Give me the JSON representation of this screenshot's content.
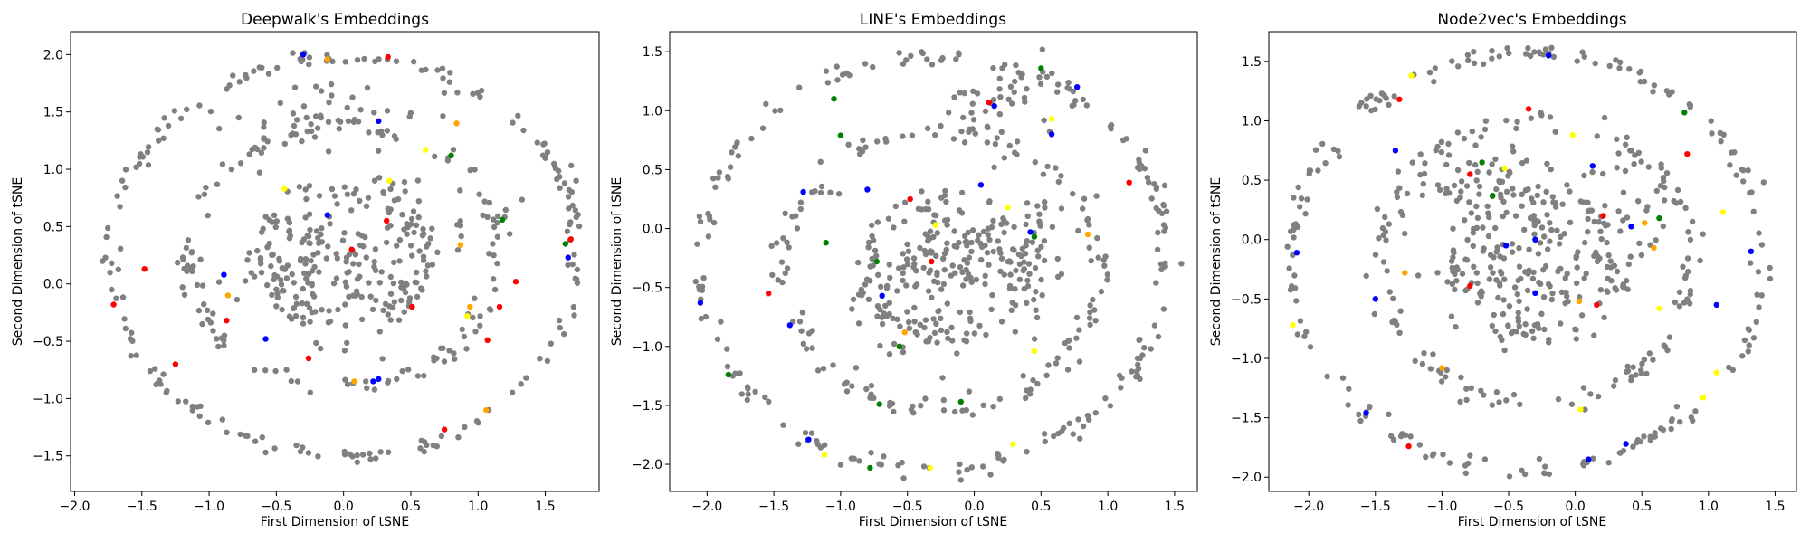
{
  "figure": {
    "background": "#ffffff"
  },
  "chart_data": [
    {
      "type": "scatter",
      "title": "Deepwalk's Embeddings",
      "xlabel": "First Dimension of tSNE",
      "ylabel": "Second Dimension of tSNE",
      "xlim": [
        -2.03,
        1.9
      ],
      "ylim": [
        -1.81,
        2.2
      ],
      "xticks": [
        -2.0,
        -1.5,
        -1.0,
        -0.5,
        0.0,
        0.5,
        1.0,
        1.5
      ],
      "xtick_labels": [
        "−2.0",
        "−1.5",
        "−1.0",
        "−0.5",
        "0.0",
        "0.5",
        "1.0",
        "1.5"
      ],
      "yticks": [
        -1.5,
        -1.0,
        -0.5,
        0.0,
        0.5,
        1.0,
        1.5,
        2.0
      ],
      "ytick_labels": [
        "−1.5",
        "−1.0",
        "−0.5",
        "0.0",
        "0.5",
        "1.0",
        "1.5",
        "2.0"
      ],
      "grid": false,
      "base_color": "#808080",
      "seed": 11,
      "rings": [
        {
          "cx": 0.0,
          "cy": 0.25,
          "r": 1.74,
          "n": 190,
          "jitter": 0.035
        },
        {
          "cx": 0.0,
          "cy": 0.25,
          "r": 1.15,
          "n": 130,
          "jitter": 0.05
        },
        {
          "cx": 0.0,
          "cy": 0.25,
          "r": 0.6,
          "n": 80,
          "jitter": 0.06
        }
      ],
      "clusters": [
        {
          "cx": 0.0,
          "cy": 0.1,
          "sx": 0.35,
          "sy": 0.3,
          "n": 110
        },
        {
          "cx": -0.4,
          "cy": 0.2,
          "sx": 0.2,
          "sy": 0.25,
          "n": 40
        },
        {
          "cx": 0.35,
          "cy": 0.6,
          "sx": 0.35,
          "sy": 0.2,
          "n": 40
        },
        {
          "cx": -0.2,
          "cy": 1.5,
          "sx": 0.4,
          "sy": 0.15,
          "n": 40
        }
      ],
      "highlights": [
        {
          "x": -0.3,
          "y": 2.0,
          "c": "#0000ff"
        },
        {
          "x": 0.33,
          "y": 1.98,
          "c": "#ff0000"
        },
        {
          "x": -0.12,
          "y": 1.96,
          "c": "#ffa500"
        },
        {
          "x": 0.84,
          "y": 1.4,
          "c": "#ffa500"
        },
        {
          "x": 0.26,
          "y": 1.42,
          "c": "#0000ff"
        },
        {
          "x": 0.61,
          "y": 1.17,
          "c": "#ffff00"
        },
        {
          "x": 0.8,
          "y": 1.12,
          "c": "#008000"
        },
        {
          "x": -0.44,
          "y": 0.83,
          "c": "#ffff00"
        },
        {
          "x": 0.34,
          "y": 0.9,
          "c": "#ffff00"
        },
        {
          "x": 1.18,
          "y": 0.56,
          "c": "#008000"
        },
        {
          "x": 1.69,
          "y": 0.39,
          "c": "#ff0000"
        },
        {
          "x": 1.65,
          "y": 0.35,
          "c": "#008000"
        },
        {
          "x": 1.67,
          "y": 0.23,
          "c": "#0000ff"
        },
        {
          "x": 0.32,
          "y": 0.55,
          "c": "#ff0000"
        },
        {
          "x": 0.87,
          "y": 0.34,
          "c": "#ffa500"
        },
        {
          "x": -0.12,
          "y": 0.6,
          "c": "#0000ff"
        },
        {
          "x": 0.06,
          "y": 0.3,
          "c": "#ff0000"
        },
        {
          "x": 1.28,
          "y": 0.02,
          "c": "#ff0000"
        },
        {
          "x": -0.89,
          "y": 0.08,
          "c": "#0000ff"
        },
        {
          "x": -1.48,
          "y": 0.13,
          "c": "#ff0000"
        },
        {
          "x": -0.86,
          "y": -0.1,
          "c": "#ffa500"
        },
        {
          "x": 0.51,
          "y": -0.2,
          "c": "#ff0000"
        },
        {
          "x": 0.94,
          "y": -0.2,
          "c": "#ffa500"
        },
        {
          "x": 1.16,
          "y": -0.2,
          "c": "#ff0000"
        },
        {
          "x": -1.71,
          "y": -0.18,
          "c": "#ff0000"
        },
        {
          "x": -0.87,
          "y": -0.32,
          "c": "#ff0000"
        },
        {
          "x": 0.92,
          "y": -0.28,
          "c": "#ffff00"
        },
        {
          "x": 1.07,
          "y": -0.49,
          "c": "#ff0000"
        },
        {
          "x": -0.58,
          "y": -0.48,
          "c": "#0000ff"
        },
        {
          "x": -1.25,
          "y": -0.7,
          "c": "#ff0000"
        },
        {
          "x": -0.26,
          "y": -0.65,
          "c": "#ff0000"
        },
        {
          "x": 0.22,
          "y": -0.85,
          "c": "#0000ff"
        },
        {
          "x": 0.26,
          "y": -0.83,
          "c": "#0000ff"
        },
        {
          "x": 0.08,
          "y": -0.85,
          "c": "#ffa500"
        },
        {
          "x": 1.06,
          "y": -1.1,
          "c": "#ffa500"
        },
        {
          "x": 0.75,
          "y": -1.27,
          "c": "#ff0000"
        }
      ]
    },
    {
      "type": "scatter",
      "title": "LINE's Embeddings",
      "xlabel": "First Dimension of tSNE",
      "ylabel": "Second Dimension of tSNE",
      "xlim": [
        -2.28,
        1.67
      ],
      "ylim": [
        -2.23,
        1.67
      ],
      "xticks": [
        -2.0,
        -1.5,
        -1.0,
        -0.5,
        0.0,
        0.5,
        1.0,
        1.5
      ],
      "xtick_labels": [
        "−2.0",
        "−1.5",
        "−1.0",
        "−0.5",
        "0.0",
        "0.5",
        "1.0",
        "1.5"
      ],
      "yticks": [
        -2.0,
        -1.5,
        -1.0,
        -0.5,
        0.0,
        0.5,
        1.0,
        1.5
      ],
      "ytick_labels": [
        "−2.0",
        "−1.5",
        "−1.0",
        "−0.5",
        "0.0",
        "0.5",
        "1.0",
        "1.5"
      ],
      "grid": false,
      "base_color": "#808080",
      "seed": 23,
      "rings": [
        {
          "cx": -0.3,
          "cy": -0.28,
          "r": 1.76,
          "n": 200,
          "jitter": 0.04
        },
        {
          "cx": -0.25,
          "cy": -0.35,
          "r": 1.18,
          "n": 140,
          "jitter": 0.05
        },
        {
          "cx": -0.2,
          "cy": -0.35,
          "r": 0.6,
          "n": 90,
          "jitter": 0.06
        }
      ],
      "clusters": [
        {
          "cx": -0.2,
          "cy": -0.3,
          "sx": 0.3,
          "sy": 0.2,
          "n": 90
        },
        {
          "cx": 0.25,
          "cy": -0.2,
          "sx": 0.3,
          "sy": 0.25,
          "n": 60
        },
        {
          "cx": -0.5,
          "cy": -0.8,
          "sx": 0.3,
          "sy": 0.2,
          "n": 40
        },
        {
          "cx": 0.1,
          "cy": 1.0,
          "sx": 0.2,
          "sy": 0.2,
          "n": 40
        }
      ],
      "highlights": [
        {
          "x": 0.5,
          "y": 1.36,
          "c": "#008000"
        },
        {
          "x": 0.77,
          "y": 1.2,
          "c": "#0000ff"
        },
        {
          "x": -1.05,
          "y": 1.1,
          "c": "#008000"
        },
        {
          "x": 0.11,
          "y": 1.07,
          "c": "#ff0000"
        },
        {
          "x": 0.15,
          "y": 1.04,
          "c": "#0000ff"
        },
        {
          "x": 0.58,
          "y": 0.93,
          "c": "#ffff00"
        },
        {
          "x": 0.58,
          "y": 0.8,
          "c": "#0000ff"
        },
        {
          "x": -1.0,
          "y": 0.79,
          "c": "#008000"
        },
        {
          "x": 0.05,
          "y": 0.37,
          "c": "#0000ff"
        },
        {
          "x": -1.28,
          "y": 0.31,
          "c": "#0000ff"
        },
        {
          "x": -0.8,
          "y": 0.33,
          "c": "#0000ff"
        },
        {
          "x": 1.16,
          "y": 0.39,
          "c": "#ff0000"
        },
        {
          "x": -0.48,
          "y": 0.25,
          "c": "#ff0000"
        },
        {
          "x": 0.25,
          "y": 0.18,
          "c": "#ffff00"
        },
        {
          "x": -0.29,
          "y": 0.03,
          "c": "#ffff00"
        },
        {
          "x": 0.42,
          "y": -0.03,
          "c": "#0000ff"
        },
        {
          "x": 0.45,
          "y": -0.07,
          "c": "#008000"
        },
        {
          "x": 0.85,
          "y": -0.05,
          "c": "#ffa500"
        },
        {
          "x": -1.11,
          "y": -0.12,
          "c": "#008000"
        },
        {
          "x": -0.73,
          "y": -0.28,
          "c": "#008000"
        },
        {
          "x": -0.32,
          "y": -0.28,
          "c": "#ff0000"
        },
        {
          "x": -0.69,
          "y": -0.57,
          "c": "#0000ff"
        },
        {
          "x": -2.05,
          "y": -0.63,
          "c": "#0000ff"
        },
        {
          "x": -1.54,
          "y": -0.55,
          "c": "#ff0000"
        },
        {
          "x": -1.38,
          "y": -0.82,
          "c": "#0000ff"
        },
        {
          "x": -0.52,
          "y": -0.88,
          "c": "#ffa500"
        },
        {
          "x": -0.56,
          "y": -1.0,
          "c": "#008000"
        },
        {
          "x": 0.45,
          "y": -1.04,
          "c": "#ffff00"
        },
        {
          "x": -1.84,
          "y": -1.24,
          "c": "#008000"
        },
        {
          "x": -0.71,
          "y": -1.49,
          "c": "#008000"
        },
        {
          "x": -0.1,
          "y": -1.47,
          "c": "#008000"
        },
        {
          "x": -1.24,
          "y": -1.79,
          "c": "#0000ff"
        },
        {
          "x": 0.29,
          "y": -1.83,
          "c": "#ffff00"
        },
        {
          "x": -1.12,
          "y": -1.92,
          "c": "#ffff00"
        },
        {
          "x": -0.78,
          "y": -2.03,
          "c": "#008000"
        },
        {
          "x": -0.33,
          "y": -2.03,
          "c": "#ffff00"
        }
      ]
    },
    {
      "type": "scatter",
      "title": "Node2vec's Embeddings",
      "xlabel": "First Dimension of tSNE",
      "ylabel": "Second Dimension of tSNE",
      "xlim": [
        -2.3,
        1.66
      ],
      "ylim": [
        -2.12,
        1.75
      ],
      "xticks": [
        -2.0,
        -1.5,
        -1.0,
        -0.5,
        0.0,
        0.5,
        1.0,
        1.5
      ],
      "xtick_labels": [
        "−2.0",
        "−1.5",
        "−1.0",
        "−0.5",
        "0.0",
        "0.5",
        "1.0",
        "1.5"
      ],
      "yticks": [
        -2.0,
        -1.5,
        -1.0,
        -0.5,
        0.0,
        0.5,
        1.0,
        1.5
      ],
      "ytick_labels": [
        "−2.0",
        "−1.5",
        "−1.0",
        "−0.5",
        "0.0",
        "0.5",
        "1.0",
        "1.5"
      ],
      "grid": false,
      "base_color": "#808080",
      "seed": 37,
      "rings": [
        {
          "cx": -0.35,
          "cy": -0.17,
          "r": 1.76,
          "n": 200,
          "jitter": 0.04
        },
        {
          "cx": -0.3,
          "cy": -0.2,
          "r": 1.18,
          "n": 140,
          "jitter": 0.05
        },
        {
          "cx": -0.3,
          "cy": -0.2,
          "r": 0.6,
          "n": 90,
          "jitter": 0.06
        }
      ],
      "clusters": [
        {
          "cx": -0.3,
          "cy": -0.3,
          "sx": 0.3,
          "sy": 0.2,
          "n": 90
        },
        {
          "cx": -0.4,
          "cy": 0.2,
          "sx": 0.3,
          "sy": 0.25,
          "n": 60
        },
        {
          "cx": 0.3,
          "cy": 0.2,
          "sx": 0.25,
          "sy": 0.25,
          "n": 40
        },
        {
          "cx": -0.8,
          "cy": 0.55,
          "sx": 0.2,
          "sy": 0.15,
          "n": 30
        }
      ],
      "highlights": [
        {
          "x": -0.2,
          "y": 1.55,
          "c": "#0000ff"
        },
        {
          "x": -1.23,
          "y": 1.38,
          "c": "#ffff00"
        },
        {
          "x": -1.32,
          "y": 1.18,
          "c": "#ff0000"
        },
        {
          "x": -0.35,
          "y": 1.1,
          "c": "#ff0000"
        },
        {
          "x": 0.82,
          "y": 1.07,
          "c": "#008000"
        },
        {
          "x": -0.02,
          "y": 0.88,
          "c": "#ffff00"
        },
        {
          "x": -1.35,
          "y": 0.75,
          "c": "#0000ff"
        },
        {
          "x": 0.84,
          "y": 0.72,
          "c": "#ff0000"
        },
        {
          "x": -0.7,
          "y": 0.65,
          "c": "#008000"
        },
        {
          "x": -0.53,
          "y": 0.6,
          "c": "#ffff00"
        },
        {
          "x": 0.13,
          "y": 0.62,
          "c": "#0000ff"
        },
        {
          "x": -0.79,
          "y": 0.55,
          "c": "#ff0000"
        },
        {
          "x": -0.62,
          "y": 0.37,
          "c": "#008000"
        },
        {
          "x": 0.21,
          "y": 0.2,
          "c": "#ff0000"
        },
        {
          "x": 0.63,
          "y": 0.18,
          "c": "#008000"
        },
        {
          "x": 0.52,
          "y": 0.14,
          "c": "#ffa500"
        },
        {
          "x": 1.11,
          "y": 0.23,
          "c": "#ffff00"
        },
        {
          "x": 0.42,
          "y": 0.11,
          "c": "#0000ff"
        },
        {
          "x": -2.09,
          "y": -0.11,
          "c": "#0000ff"
        },
        {
          "x": -0.52,
          "y": -0.05,
          "c": "#0000ff"
        },
        {
          "x": -0.3,
          "y": 0.0,
          "c": "#0000ff"
        },
        {
          "x": 0.59,
          "y": -0.07,
          "c": "#ffa500"
        },
        {
          "x": 1.32,
          "y": -0.1,
          "c": "#0000ff"
        },
        {
          "x": -1.28,
          "y": -0.28,
          "c": "#ffa500"
        },
        {
          "x": -0.79,
          "y": -0.39,
          "c": "#ff0000"
        },
        {
          "x": -0.3,
          "y": -0.45,
          "c": "#0000ff"
        },
        {
          "x": 0.03,
          "y": -0.52,
          "c": "#ffa500"
        },
        {
          "x": 0.16,
          "y": -0.55,
          "c": "#ff0000"
        },
        {
          "x": -1.5,
          "y": -0.5,
          "c": "#0000ff"
        },
        {
          "x": -2.12,
          "y": -0.72,
          "c": "#ffff00"
        },
        {
          "x": 0.63,
          "y": -0.58,
          "c": "#ffff00"
        },
        {
          "x": 1.06,
          "y": -0.55,
          "c": "#0000ff"
        },
        {
          "x": -1.0,
          "y": -1.08,
          "c": "#ffa500"
        },
        {
          "x": 1.06,
          "y": -1.12,
          "c": "#ffff00"
        },
        {
          "x": 0.96,
          "y": -1.33,
          "c": "#ffff00"
        },
        {
          "x": 0.04,
          "y": -1.43,
          "c": "#ffff00"
        },
        {
          "x": -1.57,
          "y": -1.46,
          "c": "#0000ff"
        },
        {
          "x": 0.38,
          "y": -1.72,
          "c": "#0000ff"
        },
        {
          "x": -1.25,
          "y": -1.74,
          "c": "#ff0000"
        },
        {
          "x": 0.1,
          "y": -1.85,
          "c": "#0000ff"
        }
      ]
    }
  ]
}
